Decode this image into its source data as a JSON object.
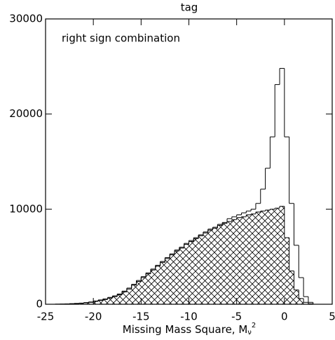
{
  "chart_data": {
    "type": "histogram",
    "title": "tag",
    "annotation": "right sign combination",
    "xlabel": "Missing Mass Square, M",
    "xlabel_sub": "ν",
    "xlabel_sup": "2",
    "bins": [
      -25,
      -24.5,
      -24,
      -23.5,
      -23,
      -22.5,
      -22,
      -21.5,
      -21,
      -20.5,
      -20,
      -19.5,
      -19,
      -18.5,
      -18,
      -17.5,
      -17,
      -16.5,
      -16,
      -15.5,
      -15,
      -14.5,
      -14,
      -13.5,
      -13,
      -12.5,
      -12,
      -11.5,
      -11,
      -10.5,
      -10,
      -9.5,
      -9,
      -8.5,
      -8,
      -7.5,
      -7,
      -6.5,
      -6,
      -5.5,
      -5,
      -4.5,
      -4,
      -3.5,
      -3,
      -2.5,
      -2,
      -1.5,
      -1,
      -0.5,
      0,
      0.5,
      1,
      1.5,
      2,
      2.5,
      3,
      3.5,
      4,
      4.5,
      5
    ],
    "series": [
      {
        "color": "#000000",
        "hatch": false,
        "values": [
          0,
          0,
          10,
          20,
          40,
          60,
          90,
          120,
          180,
          240,
          340,
          450,
          560,
          720,
          880,
          1080,
          1380,
          1700,
          2100,
          2500,
          2900,
          3300,
          3700,
          4100,
          4500,
          4900,
          5300,
          5700,
          6000,
          6400,
          6700,
          7000,
          7300,
          7600,
          7900,
          8100,
          8400,
          8600,
          9000,
          9200,
          9400,
          9600,
          9800,
          10000,
          10600,
          12100,
          14300,
          17600,
          23100,
          24800,
          17600,
          10600,
          6200,
          2800,
          800,
          200,
          0,
          0,
          0,
          0
        ]
      },
      {
        "color": "#000000",
        "hatch": true,
        "values": [
          0,
          0,
          10,
          20,
          30,
          50,
          70,
          100,
          150,
          200,
          300,
          400,
          500,
          650,
          800,
          1000,
          1300,
          1600,
          2000,
          2400,
          2800,
          3200,
          3600,
          4000,
          4400,
          4800,
          5200,
          5600,
          5900,
          6300,
          6600,
          6900,
          7200,
          7500,
          7800,
          8000,
          8300,
          8500,
          8700,
          8900,
          9100,
          9200,
          9400,
          9500,
          9700,
          9800,
          9900,
          10000,
          10100,
          10300,
          7000,
          3500,
          1500,
          600,
          200,
          50,
          0,
          0,
          0,
          0
        ]
      }
    ],
    "xlim": [
      -25,
      5
    ],
    "xticks": [
      -25,
      -20,
      -15,
      -10,
      -5,
      0,
      5
    ],
    "ylim": [
      0,
      30000
    ],
    "yticks": [
      0,
      10000,
      20000,
      30000
    ]
  }
}
